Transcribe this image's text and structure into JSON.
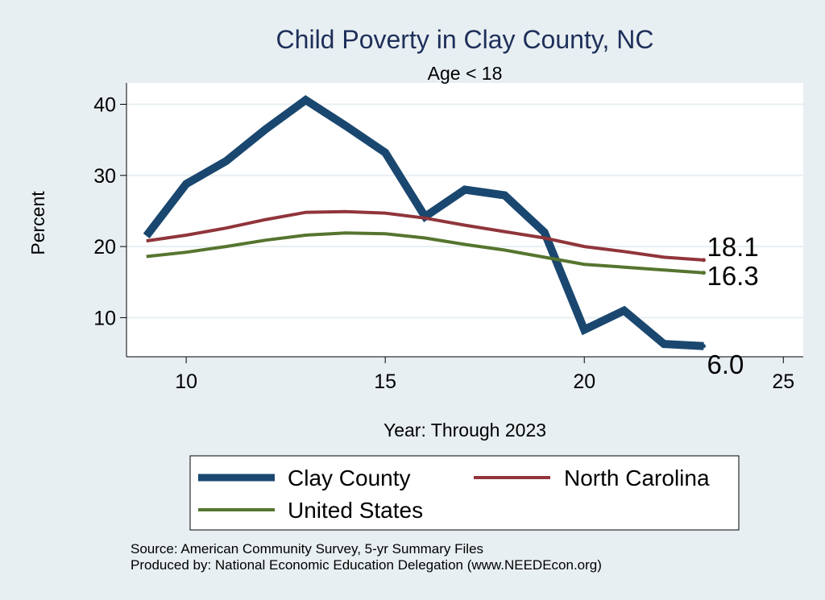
{
  "chart_data": {
    "type": "line",
    "title": "Child Poverty in Clay County, NC",
    "subtitle": "Age < 18",
    "xlabel": "Year: Through 2023",
    "ylabel": "Percent",
    "xlim": [
      8.5,
      25.5
    ],
    "ylim": [
      4.5,
      43
    ],
    "x_ticks": [
      10,
      15,
      20,
      25
    ],
    "y_ticks": [
      10,
      20,
      30,
      40
    ],
    "grid": true,
    "legend": "bottom",
    "x": [
      9,
      10,
      11,
      12,
      13,
      14,
      15,
      16,
      17,
      18,
      19,
      20,
      21,
      22,
      23
    ],
    "series": [
      {
        "name": "Clay County",
        "color": "#1a476f",
        "values": [
          21.5,
          28.8,
          32.0,
          36.5,
          40.6,
          37.0,
          33.2,
          24.2,
          28.0,
          27.2,
          22.0,
          8.3,
          11.0,
          6.3,
          6.0
        ],
        "end_label": "6.0"
      },
      {
        "name": "North Carolina",
        "color": "#90353b",
        "values": [
          20.8,
          21.6,
          22.6,
          23.8,
          24.8,
          24.9,
          24.7,
          24.0,
          23.0,
          22.1,
          21.2,
          20.0,
          19.3,
          18.5,
          18.1
        ],
        "end_label": "18.1"
      },
      {
        "name": "United States",
        "color": "#55752f",
        "values": [
          18.6,
          19.2,
          20.0,
          20.9,
          21.6,
          21.9,
          21.8,
          21.2,
          20.3,
          19.5,
          18.5,
          17.5,
          17.1,
          16.7,
          16.3
        ],
        "end_label": "16.3"
      }
    ]
  },
  "notes": {
    "source": "Source: American Community Survey, 5-yr Summary Files",
    "producer": "Produced by: National Economic Education Delegation (www.NEEDEcon.org)"
  }
}
